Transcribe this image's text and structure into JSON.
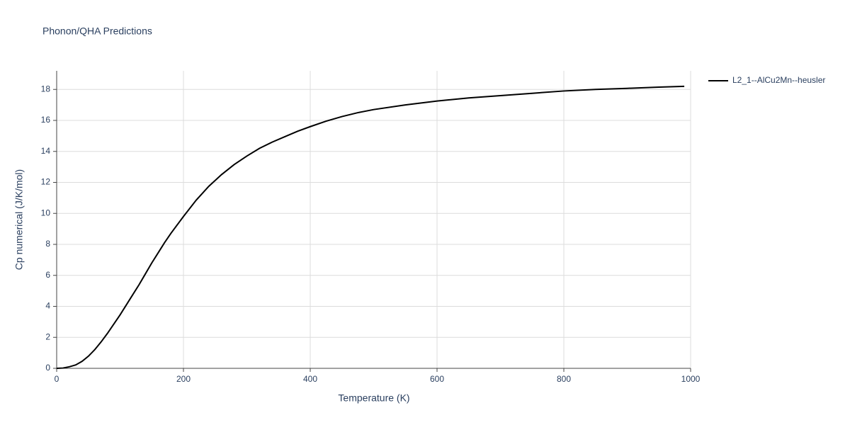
{
  "chart_data": {
    "type": "line",
    "title": "Phonon/QHA Predictions",
    "x_label": "Temperature (K)",
    "y_label": "Cp numerical (J/K/mol)",
    "x": [
      0,
      10,
      20,
      30,
      40,
      50,
      60,
      70,
      80,
      90,
      100,
      110,
      120,
      130,
      140,
      150,
      160,
      170,
      180,
      190,
      200,
      220,
      240,
      260,
      280,
      300,
      320,
      340,
      360,
      380,
      400,
      425,
      450,
      475,
      500,
      550,
      600,
      650,
      700,
      750,
      800,
      850,
      900,
      950,
      990
    ],
    "series": [
      {
        "name": "L2_1--AlCu2Mn--heusler",
        "color": "#000000",
        "values": [
          0,
          0.02,
          0.1,
          0.22,
          0.45,
          0.78,
          1.2,
          1.7,
          2.25,
          2.85,
          3.45,
          4.1,
          4.75,
          5.4,
          6.1,
          6.8,
          7.45,
          8.1,
          8.7,
          9.25,
          9.8,
          10.85,
          11.75,
          12.5,
          13.15,
          13.7,
          14.2,
          14.6,
          14.95,
          15.3,
          15.6,
          15.95,
          16.25,
          16.5,
          16.7,
          17.0,
          17.25,
          17.45,
          17.6,
          17.75,
          17.9,
          18.0,
          18.07,
          18.15,
          18.2
        ]
      }
    ],
    "xlim": [
      0,
      1000
    ],
    "xticks": [
      0,
      200,
      400,
      600,
      800,
      1000
    ],
    "ylim": [
      0,
      19.2
    ],
    "yticks": [
      0,
      2,
      4,
      6,
      8,
      10,
      12,
      14,
      16,
      18
    ],
    "grid": true
  }
}
